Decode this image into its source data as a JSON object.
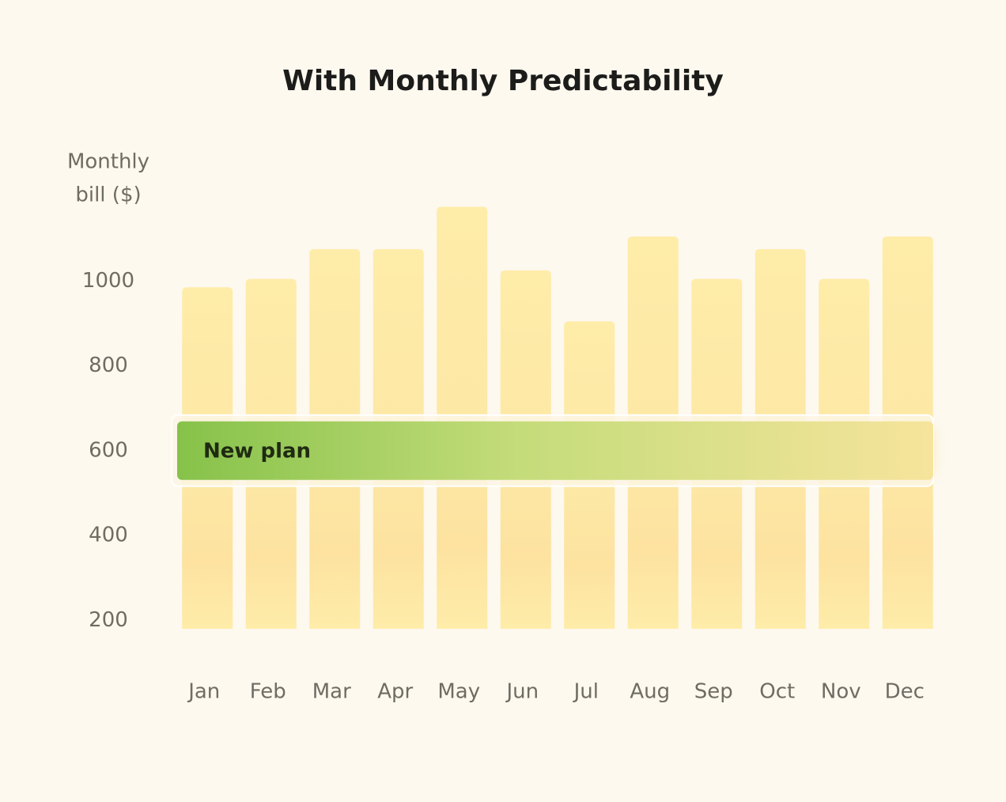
{
  "chart_data": {
    "type": "bar",
    "title": "With Monthly Predictability",
    "y_label": [
      "Monthly",
      "bill ($)"
    ],
    "categories": [
      "Jan",
      "Feb",
      "Mar",
      "Apr",
      "May",
      "Jun",
      "Jul",
      "Aug",
      "Sep",
      "Oct",
      "Nov",
      "Dec"
    ],
    "values": [
      985,
      1005,
      1075,
      1075,
      1175,
      1025,
      905,
      1105,
      1005,
      1075,
      1005,
      1105
    ],
    "color": "#feeba8",
    "ylim": [
      180,
      1200
    ],
    "yticks": [
      200,
      400,
      600,
      800,
      1000
    ],
    "plan": {
      "label": "New plan",
      "value": 600
    }
  }
}
